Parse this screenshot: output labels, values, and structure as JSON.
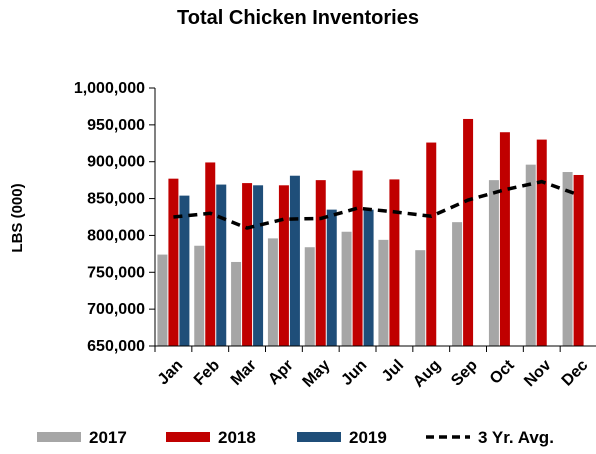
{
  "chart_data": {
    "type": "bar",
    "title": "Total Chicken Inventories",
    "ylabel": "LBS (000)",
    "xlabel": "",
    "ylim": [
      650000,
      1000000
    ],
    "ytick_step": 50000,
    "ytick_labels": [
      "650,000",
      "700,000",
      "750,000",
      "800,000",
      "850,000",
      "900,000",
      "950,000",
      "1,000,000"
    ],
    "categories": [
      "Jan",
      "Feb",
      "Mar",
      "Apr",
      "May",
      "Jun",
      "Jul",
      "Aug",
      "Sep",
      "Oct",
      "Nov",
      "Dec"
    ],
    "series": [
      {
        "name": "2017",
        "kind": "bar",
        "color": "#a6a6a6",
        "values": [
          774000,
          786000,
          764000,
          796000,
          784000,
          805000,
          794000,
          780000,
          818000,
          875000,
          896000,
          886000
        ]
      },
      {
        "name": "2018",
        "kind": "bar",
        "color": "#c00000",
        "values": [
          877000,
          899000,
          871000,
          868000,
          875000,
          888000,
          876000,
          926000,
          958000,
          940000,
          930000,
          882000
        ]
      },
      {
        "name": "2019",
        "kind": "bar",
        "color": "#1f4e79",
        "values": [
          854000,
          869000,
          868000,
          881000,
          835000,
          835000,
          null,
          null,
          null,
          null,
          null,
          null
        ]
      },
      {
        "name": "3 Yr. Avg.",
        "kind": "line",
        "style": "dashed",
        "color": "#000000",
        "values": [
          825000,
          830000,
          810000,
          822000,
          823000,
          837000,
          832000,
          826000,
          848000,
          862000,
          873000,
          855000
        ]
      }
    ],
    "legend": {
      "position": "bottom"
    },
    "grid": false
  }
}
